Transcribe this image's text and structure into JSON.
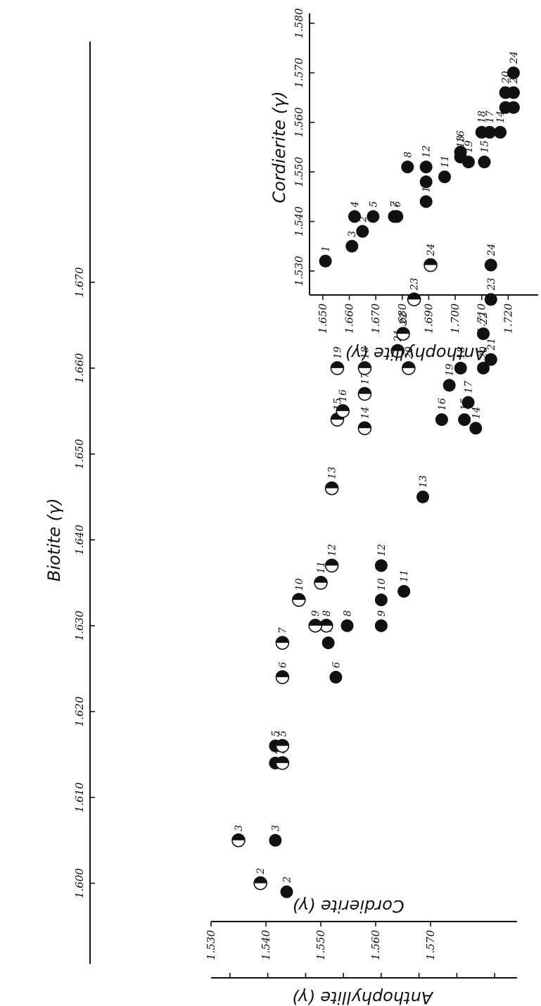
{
  "chart_data": [
    {
      "type": "scatter",
      "xlabel": "Biotite (γ)",
      "ylabel_primary": "Anthophyllite (γ)",
      "ylabel_secondary": "Cordierite (γ)",
      "marker_primary": "filled-circle",
      "marker_secondary": "half-filled-circle",
      "xlim": [
        1.598,
        1.68
      ],
      "x_ticks": [
        "1.600",
        "1.610",
        "1.620",
        "1.630",
        "1.640",
        "1.650",
        "1.660",
        "1.670"
      ],
      "ylim_primary": [
        1.645,
        1.725
      ],
      "y_ticks_primary": [
        "1.650",
        "1.660",
        "1.670",
        "1.680",
        "1.690",
        "1.700",
        "1.710",
        "1.720"
      ],
      "ylim_secondary": [
        1.53,
        1.58
      ],
      "y_ticks_secondary": [
        "1.530",
        "1.540",
        "1.550",
        "1.560",
        "1.570"
      ],
      "series": [
        {
          "name": "Anthophyllite (γ)",
          "points": [
            {
              "label": "2",
              "x": 1.599,
              "y": 1.665
            },
            {
              "label": "3",
              "x": 1.605,
              "y": 1.662
            },
            {
              "label": "4",
              "x": 1.614,
              "y": 1.662
            },
            {
              "label": "5",
              "x": 1.616,
              "y": 1.662
            },
            {
              "label": "6",
              "x": 1.624,
              "y": 1.678
            },
            {
              "label": "7",
              "x": 1.628,
              "y": 1.676
            },
            {
              "label": "8",
              "x": 1.63,
              "y": 1.681
            },
            {
              "label": "9",
              "x": 1.63,
              "y": 1.69
            },
            {
              "label": "10",
              "x": 1.633,
              "y": 1.69
            },
            {
              "label": "11",
              "x": 1.634,
              "y": 1.696
            },
            {
              "label": "12",
              "x": 1.637,
              "y": 1.69
            },
            {
              "label": "13",
              "x": 1.645,
              "y": 1.701
            },
            {
              "label": "14",
              "x": 1.653,
              "y": 1.715
            },
            {
              "label": "15",
              "x": 1.654,
              "y": 1.712
            },
            {
              "label": "16",
              "x": 1.654,
              "y": 1.706
            },
            {
              "label": "17",
              "x": 1.656,
              "y": 1.713
            },
            {
              "label": "18",
              "x": 1.66,
              "y": 1.711
            },
            {
              "label": "19",
              "x": 1.658,
              "y": 1.708
            },
            {
              "label": "20",
              "x": 1.66,
              "y": 1.717
            },
            {
              "label": "21",
              "x": 1.661,
              "y": 1.719
            },
            {
              "label": "22",
              "x": 1.664,
              "y": 1.717
            },
            {
              "label": "23",
              "x": 1.668,
              "y": 1.719
            },
            {
              "label": "24",
              "x": 1.672,
              "y": 1.719
            }
          ]
        },
        {
          "name": "Cordierite (γ)",
          "points": [
            {
              "label": "2",
              "x": 1.6,
              "y": 1.539
            },
            {
              "label": "3",
              "x": 1.605,
              "y": 1.535
            },
            {
              "label": "4",
              "x": 1.614,
              "y": 1.543
            },
            {
              "label": "5",
              "x": 1.616,
              "y": 1.543
            },
            {
              "label": "6",
              "x": 1.624,
              "y": 1.543
            },
            {
              "label": "7",
              "x": 1.628,
              "y": 1.543
            },
            {
              "label": "8",
              "x": 1.63,
              "y": 1.551
            },
            {
              "label": "9",
              "x": 1.63,
              "y": 1.549
            },
            {
              "label": "10",
              "x": 1.633,
              "y": 1.546
            },
            {
              "label": "11",
              "x": 1.635,
              "y": 1.55
            },
            {
              "label": "12",
              "x": 1.637,
              "y": 1.552
            },
            {
              "label": "13",
              "x": 1.646,
              "y": 1.552
            },
            {
              "label": "14",
              "x": 1.653,
              "y": 1.558
            },
            {
              "label": "15",
              "x": 1.654,
              "y": 1.553
            },
            {
              "label": "16",
              "x": 1.655,
              "y": 1.554
            },
            {
              "label": "17",
              "x": 1.657,
              "y": 1.558
            },
            {
              "label": "18",
              "x": 1.66,
              "y": 1.558
            },
            {
              "label": "19",
              "x": 1.66,
              "y": 1.553
            },
            {
              "label": "20",
              "x": 1.66,
              "y": 1.566
            },
            {
              "label": "21",
              "x": 1.662,
              "y": 1.564
            },
            {
              "label": "22",
              "x": 1.664,
              "y": 1.565
            },
            {
              "label": "23",
              "x": 1.668,
              "y": 1.567
            },
            {
              "label": "24",
              "x": 1.672,
              "y": 1.57
            }
          ]
        }
      ]
    },
    {
      "type": "scatter",
      "xlabel": "Cordierite (γ)",
      "ylabel": "Anthophyllite (γ)",
      "marker": "filled-circle",
      "xlim": [
        1.528,
        1.582
      ],
      "x_ticks": [
        "1.530",
        "1.540",
        "1.550",
        "1.560",
        "1.570",
        "1.580"
      ],
      "ylim": [
        1.645,
        1.73
      ],
      "y_ticks": [
        "1.650",
        "1.660",
        "1.670",
        "1.680",
        "1.690",
        "1.700",
        "1.710",
        "1.720"
      ],
      "series": [
        {
          "points": [
            {
              "label": "1",
              "x": 1.532,
              "y": 1.651
            },
            {
              "label": "2",
              "x": 1.538,
              "y": 1.665
            },
            {
              "label": "3",
              "x": 1.535,
              "y": 1.661
            },
            {
              "label": "4",
              "x": 1.541,
              "y": 1.662
            },
            {
              "label": "5",
              "x": 1.541,
              "y": 1.669
            },
            {
              "label": "6",
              "x": 1.541,
              "y": 1.678
            },
            {
              "label": "7",
              "x": 1.541,
              "y": 1.677
            },
            {
              "label": "8",
              "x": 1.551,
              "y": 1.682
            },
            {
              "label": "9",
              "x": 1.548,
              "y": 1.689
            },
            {
              "label": "10",
              "x": 1.544,
              "y": 1.689
            },
            {
              "label": "11",
              "x": 1.549,
              "y": 1.696
            },
            {
              "label": "12",
              "x": 1.551,
              "y": 1.689
            },
            {
              "label": "13",
              "x": 1.553,
              "y": 1.702
            },
            {
              "label": "14",
              "x": 1.558,
              "y": 1.717
            },
            {
              "label": "15",
              "x": 1.552,
              "y": 1.711
            },
            {
              "label": "16",
              "x": 1.554,
              "y": 1.702
            },
            {
              "label": "17",
              "x": 1.558,
              "y": 1.713
            },
            {
              "label": "18",
              "x": 1.558,
              "y": 1.71
            },
            {
              "label": "19",
              "x": 1.552,
              "y": 1.705
            },
            {
              "label": "20",
              "x": 1.566,
              "y": 1.719
            },
            {
              "label": "21",
              "x": 1.563,
              "y": 1.722
            },
            {
              "label": "22",
              "x": 1.563,
              "y": 1.719
            },
            {
              "label": "23",
              "x": 1.566,
              "y": 1.722
            },
            {
              "label": "24",
              "x": 1.57,
              "y": 1.722
            }
          ]
        }
      ]
    }
  ]
}
